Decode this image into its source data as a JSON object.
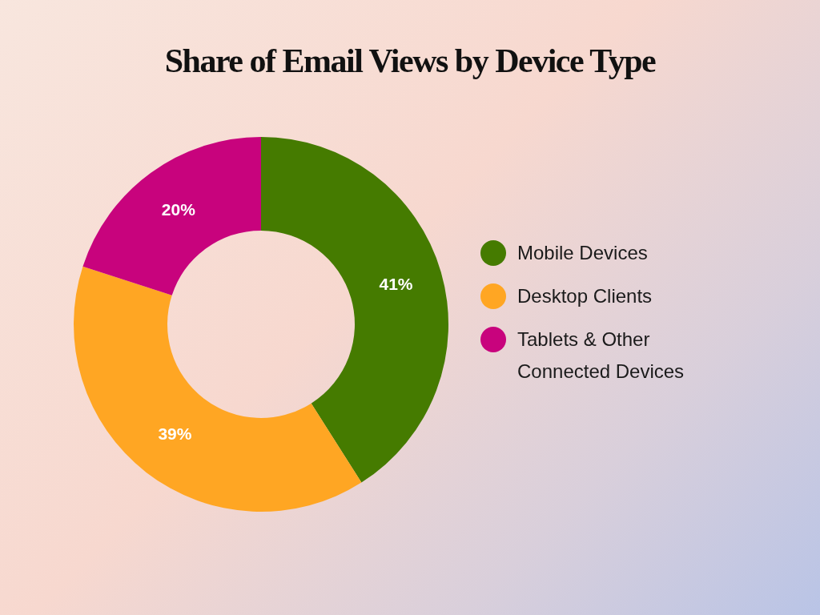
{
  "chart_data": {
    "type": "donut",
    "title": "Share of Email Views by Device Type",
    "categories": [
      "Mobile Devices",
      "Desktop Clients",
      "Tablets & Other Connected Devices"
    ],
    "values": [
      41,
      39,
      20
    ],
    "colors": [
      "#457b00",
      "#ffa623",
      "#c8037d"
    ],
    "value_labels": [
      "41%",
      "39%",
      "20%"
    ],
    "legend": "right"
  }
}
